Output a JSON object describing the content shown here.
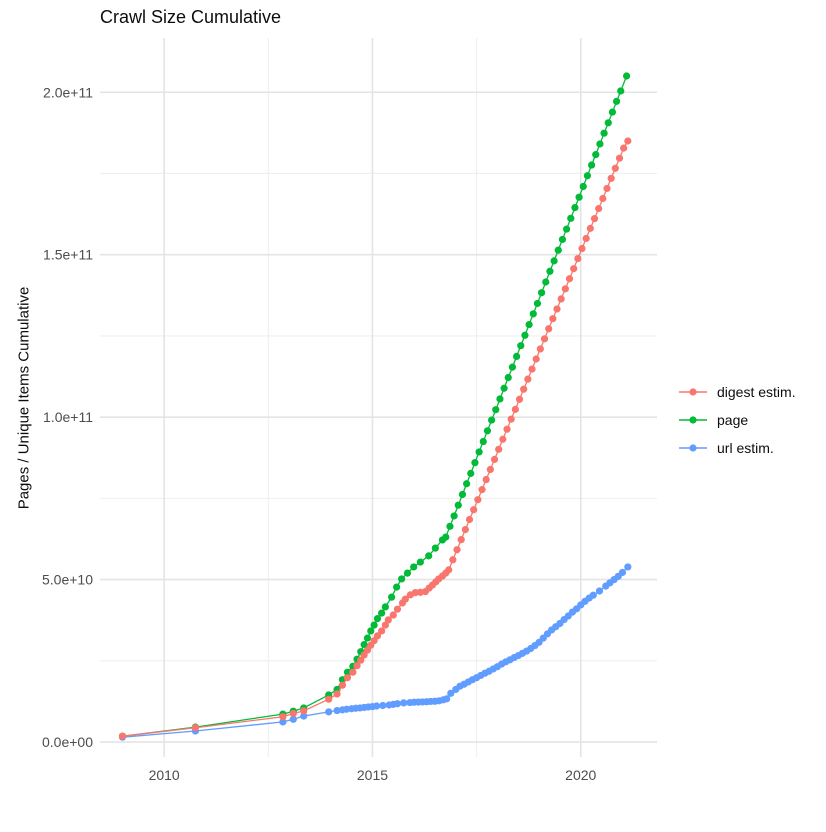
{
  "title": "Crawl Size Cumulative",
  "y_axis": {
    "label": "Pages / Unique Items Cumulative",
    "tick_labels": [
      "0.0e+00",
      "5.0e+10",
      "1.0e+11",
      "1.5e+11",
      "2.0e+11"
    ],
    "tick_values": [
      0,
      50000000000.0,
      100000000000.0,
      150000000000.0,
      200000000000.0
    ],
    "minor_tick_values": [
      25000000000.0,
      75000000000.0,
      125000000000.0,
      175000000000.0
    ]
  },
  "x_axis": {
    "label": "",
    "tick_labels": [
      "2010",
      "2015",
      "2020"
    ],
    "tick_values": [
      2010,
      2015,
      2020
    ],
    "minor_tick_values": [
      2012.5,
      2017.5
    ]
  },
  "legend": {
    "items": [
      {
        "label": "digest estim.",
        "color": "#F8766D"
      },
      {
        "label": "page",
        "color": "#00BA38"
      },
      {
        "label": "url estim.",
        "color": "#619CFF"
      }
    ]
  },
  "colors": {
    "background": "#ffffff",
    "grid_major": "#e4e4e4",
    "grid_minor": "#efefef",
    "tick_text": "#4d4d4d",
    "title_text": "#0d0d0d"
  },
  "chart_data": {
    "type": "scatter",
    "title": "Crawl Size Cumulative",
    "xlabel": "",
    "ylabel": "Pages / Unique Items Cumulative",
    "xlim": [
      2008.46,
      2021.83
    ],
    "ylim": [
      -4600000000.0,
      216700000000.0
    ],
    "grid": true,
    "legend_position": "right",
    "point_radius": 3.6,
    "draw_order": [
      "page",
      "url estim.",
      "digest estim."
    ],
    "series": [
      {
        "name": "page",
        "color": "#00BA38",
        "points": [
          [
            2009.0,
            1800000000.0
          ],
          [
            2010.75,
            4600000000.0
          ],
          [
            2012.85,
            8600000000.0
          ],
          [
            2013.1,
            9500000000.0
          ],
          [
            2013.35,
            10500000000.0
          ],
          [
            2013.95,
            14500000000.0
          ],
          [
            2014.15,
            16200000000.0
          ],
          [
            2014.28,
            19200000000.0
          ],
          [
            2014.4,
            21500000000.0
          ],
          [
            2014.53,
            23300000000.0
          ],
          [
            2014.63,
            25500000000.0
          ],
          [
            2014.72,
            27800000000.0
          ],
          [
            2014.8,
            30000000000.0
          ],
          [
            2014.88,
            32000000000.0
          ],
          [
            2014.96,
            34200000000.0
          ],
          [
            2015.04,
            36000000000.0
          ],
          [
            2015.12,
            38000000000.0
          ],
          [
            2015.22,
            39700000000.0
          ],
          [
            2015.31,
            41600000000.0
          ],
          [
            2015.46,
            44600000000.0
          ],
          [
            2015.58,
            47700000000.0
          ],
          [
            2015.7,
            50200000000.0
          ],
          [
            2015.84,
            52000000000.0
          ],
          [
            2015.99,
            53900000000.0
          ],
          [
            2016.15,
            55400000000.0
          ],
          [
            2016.35,
            57300000000.0
          ],
          [
            2016.51,
            59700000000.0
          ],
          [
            2016.68,
            62200000000.0
          ],
          [
            2016.76,
            63100000000.0
          ],
          [
            2016.86,
            66400000000.0
          ],
          [
            2016.96,
            69600000000.0
          ],
          [
            2017.06,
            72900000000.0
          ],
          [
            2017.16,
            76200000000.0
          ],
          [
            2017.26,
            79500000000.0
          ],
          [
            2017.36,
            82700000000.0
          ],
          [
            2017.46,
            86000000000.0
          ],
          [
            2017.56,
            89300000000.0
          ],
          [
            2017.66,
            92500000000.0
          ],
          [
            2017.76,
            95800000000.0
          ],
          [
            2017.86,
            99100000000.0
          ],
          [
            2017.96,
            102300000000.0
          ],
          [
            2018.06,
            105600000000.0
          ],
          [
            2018.16,
            108900000000.0
          ],
          [
            2018.26,
            112200000000.0
          ],
          [
            2018.36,
            115400000000.0
          ],
          [
            2018.46,
            118700000000.0
          ],
          [
            2018.56,
            122000000000.0
          ],
          [
            2018.66,
            125200000000.0
          ],
          [
            2018.76,
            128500000000.0
          ],
          [
            2018.86,
            131800000000.0
          ],
          [
            2018.96,
            135000000000.0
          ],
          [
            2019.06,
            138300000000.0
          ],
          [
            2019.16,
            141600000000.0
          ],
          [
            2019.26,
            144900000000.0
          ],
          [
            2019.36,
            148100000000.0
          ],
          [
            2019.46,
            151400000000.0
          ],
          [
            2019.56,
            154700000000.0
          ],
          [
            2019.66,
            157900000000.0
          ],
          [
            2019.76,
            161200000000.0
          ],
          [
            2019.86,
            164500000000.0
          ],
          [
            2019.96,
            167700000000.0
          ],
          [
            2020.06,
            171000000000.0
          ],
          [
            2020.16,
            174300000000.0
          ],
          [
            2020.26,
            177600000000.0
          ],
          [
            2020.36,
            180800000000.0
          ],
          [
            2020.46,
            184100000000.0
          ],
          [
            2020.56,
            187400000000.0
          ],
          [
            2020.66,
            190600000000.0
          ],
          [
            2020.76,
            193900000000.0
          ],
          [
            2020.86,
            197200000000.0
          ],
          [
            2020.96,
            200400000000.0
          ],
          [
            2021.1,
            205000000000.0
          ]
        ]
      },
      {
        "name": "url estim.",
        "color": "#619CFF",
        "points": [
          [
            2009.0,
            1500000000.0
          ],
          [
            2010.75,
            3400000000.0
          ],
          [
            2012.85,
            6200000000.0
          ],
          [
            2013.1,
            7000000000.0
          ],
          [
            2013.35,
            8000000000.0
          ],
          [
            2013.95,
            9300000000.0
          ],
          [
            2014.15,
            9700000000.0
          ],
          [
            2014.28,
            9900000000.0
          ],
          [
            2014.38,
            10100000000.0
          ],
          [
            2014.5,
            10250000000.0
          ],
          [
            2014.6,
            10400000000.0
          ],
          [
            2014.7,
            10500000000.0
          ],
          [
            2014.8,
            10650000000.0
          ],
          [
            2014.9,
            10800000000.0
          ],
          [
            2015.0,
            10900000000.0
          ],
          [
            2015.1,
            11100000000.0
          ],
          [
            2015.25,
            11250000000.0
          ],
          [
            2015.4,
            11400000000.0
          ],
          [
            2015.5,
            11600000000.0
          ],
          [
            2015.6,
            11800000000.0
          ],
          [
            2015.75,
            12050000000.0
          ],
          [
            2015.9,
            12150000000.0
          ],
          [
            2016.0,
            12250000000.0
          ],
          [
            2016.1,
            12300000000.0
          ],
          [
            2016.2,
            12350000000.0
          ],
          [
            2016.3,
            12400000000.0
          ],
          [
            2016.4,
            12500000000.0
          ],
          [
            2016.5,
            12550000000.0
          ],
          [
            2016.6,
            12700000000.0
          ],
          [
            2016.7,
            13000000000.0
          ],
          [
            2016.78,
            13300000000.0
          ],
          [
            2016.88,
            15000000000.0
          ],
          [
            2017.0,
            16200000000.0
          ],
          [
            2017.1,
            17200000000.0
          ],
          [
            2017.2,
            17800000000.0
          ],
          [
            2017.3,
            18500000000.0
          ],
          [
            2017.4,
            19200000000.0
          ],
          [
            2017.5,
            19800000000.0
          ],
          [
            2017.6,
            20500000000.0
          ],
          [
            2017.7,
            21200000000.0
          ],
          [
            2017.8,
            21800000000.0
          ],
          [
            2017.9,
            22500000000.0
          ],
          [
            2018.0,
            23200000000.0
          ],
          [
            2018.1,
            24000000000.0
          ],
          [
            2018.2,
            24700000000.0
          ],
          [
            2018.3,
            25300000000.0
          ],
          [
            2018.4,
            26000000000.0
          ],
          [
            2018.5,
            26600000000.0
          ],
          [
            2018.6,
            27300000000.0
          ],
          [
            2018.7,
            28000000000.0
          ],
          [
            2018.8,
            28800000000.0
          ],
          [
            2018.9,
            29700000000.0
          ],
          [
            2019.0,
            30700000000.0
          ],
          [
            2019.1,
            32000000000.0
          ],
          [
            2019.2,
            33300000000.0
          ],
          [
            2019.3,
            34500000000.0
          ],
          [
            2019.4,
            35500000000.0
          ],
          [
            2019.5,
            36500000000.0
          ],
          [
            2019.6,
            37700000000.0
          ],
          [
            2019.7,
            38800000000.0
          ],
          [
            2019.8,
            40000000000.0
          ],
          [
            2019.9,
            41000000000.0
          ],
          [
            2020.0,
            42200000000.0
          ],
          [
            2020.1,
            43300000000.0
          ],
          [
            2020.2,
            44300000000.0
          ],
          [
            2020.3,
            45200000000.0
          ],
          [
            2020.45,
            46500000000.0
          ],
          [
            2020.6,
            48000000000.0
          ],
          [
            2020.7,
            49000000000.0
          ],
          [
            2020.8,
            50000000000.0
          ],
          [
            2020.9,
            51000000000.0
          ],
          [
            2021.0,
            52200000000.0
          ],
          [
            2021.13,
            53900000000.0
          ]
        ]
      },
      {
        "name": "digest estim.",
        "color": "#F8766D",
        "points": [
          [
            2009.0,
            1800000000.0
          ],
          [
            2010.75,
            4400000000.0
          ],
          [
            2012.85,
            7800000000.0
          ],
          [
            2013.1,
            8800000000.0
          ],
          [
            2013.35,
            9600000000.0
          ],
          [
            2013.95,
            13200000000.0
          ],
          [
            2014.15,
            14800000000.0
          ],
          [
            2014.28,
            17500000000.0
          ],
          [
            2014.4,
            19800000000.0
          ],
          [
            2014.53,
            21500000000.0
          ],
          [
            2014.63,
            23500000000.0
          ],
          [
            2014.72,
            25200000000.0
          ],
          [
            2014.8,
            26800000000.0
          ],
          [
            2014.88,
            28300000000.0
          ],
          [
            2014.96,
            29800000000.0
          ],
          [
            2015.04,
            31200000000.0
          ],
          [
            2015.12,
            32700000000.0
          ],
          [
            2015.22,
            34200000000.0
          ],
          [
            2015.31,
            36000000000.0
          ],
          [
            2015.38,
            37600000000.0
          ],
          [
            2015.5,
            39100000000.0
          ],
          [
            2015.6,
            40900000000.0
          ],
          [
            2015.72,
            42800000000.0
          ],
          [
            2015.79,
            44000000000.0
          ],
          [
            2015.91,
            45300000000.0
          ],
          [
            2016.03,
            46000000000.0
          ],
          [
            2016.15,
            46100000000.0
          ],
          [
            2016.27,
            46300000000.0
          ],
          [
            2016.36,
            47400000000.0
          ],
          [
            2016.44,
            48300000000.0
          ],
          [
            2016.52,
            49300000000.0
          ],
          [
            2016.59,
            50200000000.0
          ],
          [
            2016.68,
            51100000000.0
          ],
          [
            2016.76,
            52000000000.0
          ],
          [
            2016.83,
            53000000000.0
          ],
          [
            2016.93,
            56100000000.0
          ],
          [
            2017.03,
            59200000000.0
          ],
          [
            2017.13,
            62300000000.0
          ],
          [
            2017.23,
            65400000000.0
          ],
          [
            2017.33,
            68500000000.0
          ],
          [
            2017.43,
            71500000000.0
          ],
          [
            2017.53,
            74600000000.0
          ],
          [
            2017.63,
            77700000000.0
          ],
          [
            2017.73,
            80800000000.0
          ],
          [
            2017.83,
            83900000000.0
          ],
          [
            2017.93,
            87000000000.0
          ],
          [
            2018.03,
            90100000000.0
          ],
          [
            2018.13,
            93200000000.0
          ],
          [
            2018.23,
            96300000000.0
          ],
          [
            2018.33,
            99400000000.0
          ],
          [
            2018.43,
            102400000000.0
          ],
          [
            2018.53,
            105500000000.0
          ],
          [
            2018.63,
            108600000000.0
          ],
          [
            2018.73,
            111700000000.0
          ],
          [
            2018.83,
            114800000000.0
          ],
          [
            2018.93,
            117900000000.0
          ],
          [
            2019.03,
            121000000000.0
          ],
          [
            2019.13,
            124100000000.0
          ],
          [
            2019.23,
            127200000000.0
          ],
          [
            2019.33,
            130300000000.0
          ],
          [
            2019.43,
            133300000000.0
          ],
          [
            2019.53,
            136400000000.0
          ],
          [
            2019.63,
            139500000000.0
          ],
          [
            2019.73,
            142600000000.0
          ],
          [
            2019.83,
            145700000000.0
          ],
          [
            2019.93,
            148800000000.0
          ],
          [
            2020.03,
            151900000000.0
          ],
          [
            2020.13,
            155000000000.0
          ],
          [
            2020.23,
            158100000000.0
          ],
          [
            2020.33,
            161100000000.0
          ],
          [
            2020.43,
            164200000000.0
          ],
          [
            2020.53,
            167300000000.0
          ],
          [
            2020.63,
            170400000000.0
          ],
          [
            2020.73,
            173500000000.0
          ],
          [
            2020.83,
            176600000000.0
          ],
          [
            2020.93,
            179700000000.0
          ],
          [
            2021.03,
            182800000000.0
          ],
          [
            2021.13,
            185000000000.0
          ]
        ]
      }
    ]
  }
}
